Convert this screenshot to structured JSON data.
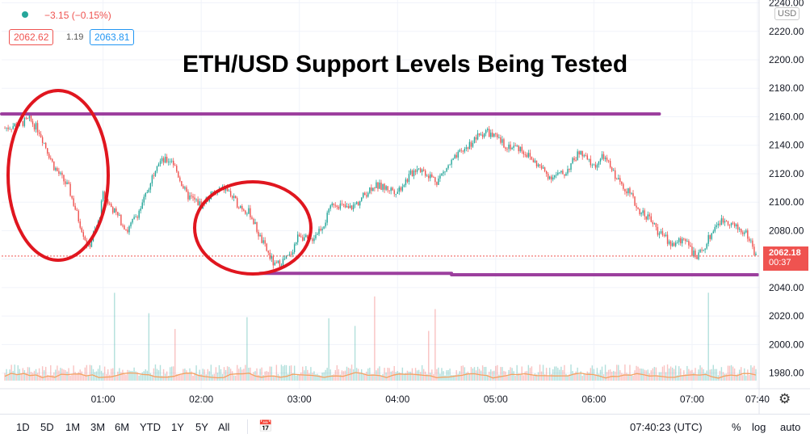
{
  "header": {
    "change": "−3.15 (−0.15%)",
    "bid": "2062.62",
    "spread": "1.19",
    "ask": "2063.81"
  },
  "currency": "USD",
  "annotation_title": "ETH/USD Support Levels Being Tested",
  "price_label": {
    "price": "2062.18",
    "countdown": "00:37"
  },
  "toolbar": {
    "ranges": [
      "1D",
      "5D",
      "1M",
      "3M",
      "6M",
      "YTD",
      "1Y",
      "5Y",
      "All"
    ],
    "time": "07:40:23 (UTC)",
    "percent": "%",
    "log": "log",
    "auto": "auto"
  },
  "colors": {
    "up": "#26a69a",
    "down": "#ef5350",
    "accent_line": "#9c3f9e",
    "circle": "#e0161f",
    "volume_ma": "#f4a261"
  },
  "chart_data": {
    "type": "candlestick",
    "title": "ETH/USD Support Levels Being Tested",
    "xlabel": "",
    "ylabel": "",
    "x_ticks": [
      "01:00",
      "02:00",
      "03:00",
      "04:00",
      "05:00",
      "06:00",
      "07:00",
      "07:40"
    ],
    "x_tick_hours": [
      1,
      2,
      3,
      4,
      5,
      6,
      7,
      7.6667
    ],
    "x_range_hours": [
      -0.0333,
      7.6833
    ],
    "y_ticks": [
      1980,
      2000,
      2020,
      2040,
      2060,
      2080,
      2100,
      2120,
      2140,
      2160,
      2180,
      2200,
      2220,
      2240
    ],
    "ylim": [
      1969,
      2242
    ],
    "price_path_hours": [
      0.0,
      0.15,
      0.25,
      0.35,
      0.5,
      0.6,
      0.65,
      0.75,
      0.85,
      0.95,
      1.0,
      1.1,
      1.25,
      1.4,
      1.55,
      1.7,
      1.85,
      2.0,
      2.1,
      2.25,
      2.35,
      2.5,
      2.6,
      2.75,
      2.9,
      3.0,
      3.1,
      3.25,
      3.35,
      3.5,
      3.6,
      3.75,
      4.0,
      4.2,
      4.4,
      4.55,
      4.65,
      4.8,
      4.9,
      5.0,
      5.1,
      5.25,
      5.4,
      5.55,
      5.7,
      5.85,
      6.0,
      6.1,
      6.25,
      6.35,
      6.45,
      6.55,
      6.65,
      6.8,
      6.95,
      7.0,
      7.05,
      7.15,
      7.25,
      7.35,
      7.45,
      7.55,
      7.6,
      7.65
    ],
    "price_path": [
      2152,
      2155,
      2158,
      2150,
      2125,
      2115,
      2110,
      2088,
      2068,
      2085,
      2105,
      2095,
      2080,
      2098,
      2128,
      2130,
      2105,
      2098,
      2105,
      2110,
      2100,
      2092,
      2075,
      2055,
      2062,
      2078,
      2072,
      2085,
      2100,
      2095,
      2100,
      2112,
      2108,
      2125,
      2115,
      2128,
      2135,
      2145,
      2150,
      2145,
      2140,
      2138,
      2128,
      2118,
      2120,
      2135,
      2125,
      2132,
      2115,
      2108,
      2095,
      2090,
      2080,
      2070,
      2075,
      2065,
      2060,
      2072,
      2085,
      2088,
      2082,
      2078,
      2072,
      2062
    ],
    "support_lines": [
      {
        "hours": [
          -0.0333,
          6.6667
        ],
        "price": 2162
      },
      {
        "hours": [
          2.6,
          4.55
        ],
        "price": 2050
      },
      {
        "hours": [
          4.55,
          7.6667
        ],
        "price": 2049
      }
    ],
    "last_price": 2062.18,
    "volume_ma_level": 0.14
  }
}
